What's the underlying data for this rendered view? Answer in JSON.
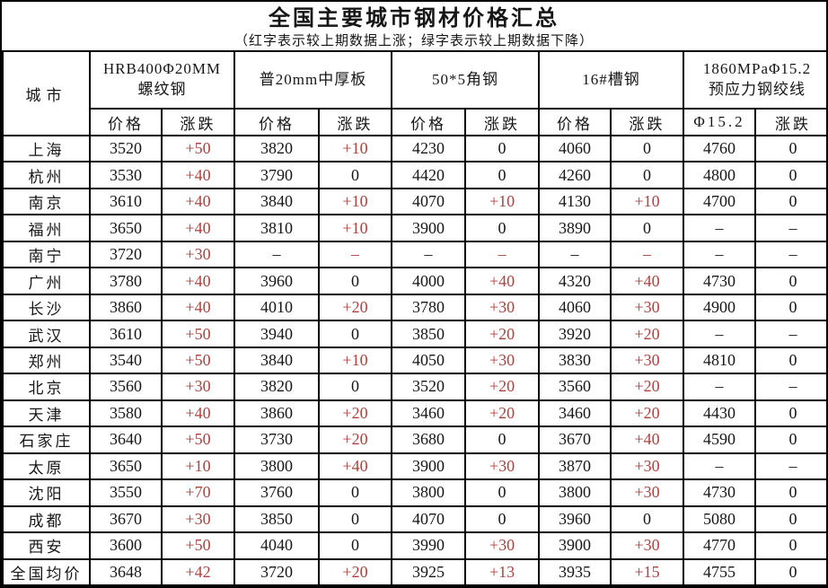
{
  "title": "全国主要城市钢材价格汇总",
  "subtitle": "（红字表示较上期数据上涨；绿字表示较上期数据下降）",
  "colors": {
    "up_red": "#b0413c",
    "text": "#161616",
    "grid_line": "#000000",
    "background": "#ffffff"
  },
  "table": {
    "city_header": "城市",
    "groups": [
      {
        "line1": "HRB400Φ20MM",
        "line2": "螺纹钢",
        "sub": [
          "价格",
          "涨跌"
        ]
      },
      {
        "line1": "普20mm中厚板",
        "line2": "",
        "sub": [
          "价格",
          "涨跌"
        ]
      },
      {
        "line1": "50*5角钢",
        "line2": "",
        "sub": [
          "价格",
          "涨跌"
        ]
      },
      {
        "line1": "16#槽钢",
        "line2": "",
        "sub": [
          "价格",
          "涨跌"
        ]
      },
      {
        "line1": "1860MPaΦ15.2",
        "line2": "预应力钢绞线",
        "sub": [
          "Φ15.2",
          "涨跌"
        ]
      }
    ],
    "rows": [
      {
        "city": "上海",
        "cells": [
          {
            "v": "3520"
          },
          {
            "v": "+50",
            "up": true
          },
          {
            "v": "3820"
          },
          {
            "v": "+10",
            "up": true
          },
          {
            "v": "4230"
          },
          {
            "v": "0"
          },
          {
            "v": "4060"
          },
          {
            "v": "0"
          },
          {
            "v": "4760"
          },
          {
            "v": "0"
          }
        ]
      },
      {
        "city": "杭州",
        "cells": [
          {
            "v": "3530"
          },
          {
            "v": "+40",
            "up": true
          },
          {
            "v": "3790"
          },
          {
            "v": "0"
          },
          {
            "v": "4420"
          },
          {
            "v": "0"
          },
          {
            "v": "4260"
          },
          {
            "v": "0"
          },
          {
            "v": "4800"
          },
          {
            "v": "0"
          }
        ]
      },
      {
        "city": "南京",
        "cells": [
          {
            "v": "3610"
          },
          {
            "v": "+40",
            "up": true
          },
          {
            "v": "3840"
          },
          {
            "v": "+10",
            "up": true
          },
          {
            "v": "4070"
          },
          {
            "v": "+10",
            "up": true
          },
          {
            "v": "4130"
          },
          {
            "v": "+10",
            "up": true
          },
          {
            "v": "4700"
          },
          {
            "v": "0"
          }
        ]
      },
      {
        "city": "福州",
        "cells": [
          {
            "v": "3650"
          },
          {
            "v": "+40",
            "up": true
          },
          {
            "v": "3810"
          },
          {
            "v": "+10",
            "up": true
          },
          {
            "v": "3900"
          },
          {
            "v": "0"
          },
          {
            "v": "3890"
          },
          {
            "v": "0"
          },
          {
            "v": "–"
          },
          {
            "v": "–"
          }
        ]
      },
      {
        "city": "南宁",
        "cells": [
          {
            "v": "3720"
          },
          {
            "v": "+30",
            "up": true
          },
          {
            "v": "–"
          },
          {
            "v": "–",
            "up": true
          },
          {
            "v": "–"
          },
          {
            "v": "–",
            "up": true
          },
          {
            "v": "–"
          },
          {
            "v": "–",
            "up": true
          },
          {
            "v": "–"
          },
          {
            "v": "–"
          }
        ]
      },
      {
        "city": "广州",
        "cells": [
          {
            "v": "3780"
          },
          {
            "v": "+40",
            "up": true
          },
          {
            "v": "3960"
          },
          {
            "v": "0"
          },
          {
            "v": "4000"
          },
          {
            "v": "+40",
            "up": true
          },
          {
            "v": "4320"
          },
          {
            "v": "+40",
            "up": true
          },
          {
            "v": "4730"
          },
          {
            "v": "0"
          }
        ]
      },
      {
        "city": "长沙",
        "cells": [
          {
            "v": "3860"
          },
          {
            "v": "+40",
            "up": true
          },
          {
            "v": "4010"
          },
          {
            "v": "+20",
            "up": true
          },
          {
            "v": "3780"
          },
          {
            "v": "+30",
            "up": true
          },
          {
            "v": "4060"
          },
          {
            "v": "+30",
            "up": true
          },
          {
            "v": "4900"
          },
          {
            "v": "0"
          }
        ]
      },
      {
        "city": "武汉",
        "cells": [
          {
            "v": "3610"
          },
          {
            "v": "+50",
            "up": true
          },
          {
            "v": "3940"
          },
          {
            "v": "0"
          },
          {
            "v": "3850"
          },
          {
            "v": "+20",
            "up": true
          },
          {
            "v": "3920"
          },
          {
            "v": "+20",
            "up": true
          },
          {
            "v": "–"
          },
          {
            "v": "–"
          }
        ]
      },
      {
        "city": "郑州",
        "cells": [
          {
            "v": "3540"
          },
          {
            "v": "+50",
            "up": true
          },
          {
            "v": "3840"
          },
          {
            "v": "+10",
            "up": true
          },
          {
            "v": "4050"
          },
          {
            "v": "+30",
            "up": true
          },
          {
            "v": "3830"
          },
          {
            "v": "+30",
            "up": true
          },
          {
            "v": "4810"
          },
          {
            "v": "0"
          }
        ]
      },
      {
        "city": "北京",
        "cells": [
          {
            "v": "3560"
          },
          {
            "v": "+30",
            "up": true
          },
          {
            "v": "3820"
          },
          {
            "v": "0"
          },
          {
            "v": "3520"
          },
          {
            "v": "+20",
            "up": true
          },
          {
            "v": "3560"
          },
          {
            "v": "+20",
            "up": true
          },
          {
            "v": "–"
          },
          {
            "v": "–"
          }
        ]
      },
      {
        "city": "天津",
        "cells": [
          {
            "v": "3580"
          },
          {
            "v": "+40",
            "up": true
          },
          {
            "v": "3860"
          },
          {
            "v": "+20",
            "up": true
          },
          {
            "v": "3460"
          },
          {
            "v": "+20",
            "up": true
          },
          {
            "v": "3460"
          },
          {
            "v": "+20",
            "up": true
          },
          {
            "v": "4430"
          },
          {
            "v": "0"
          }
        ]
      },
      {
        "city": "石家庄",
        "cells": [
          {
            "v": "3640"
          },
          {
            "v": "+50",
            "up": true
          },
          {
            "v": "3730"
          },
          {
            "v": "+20",
            "up": true
          },
          {
            "v": "3680"
          },
          {
            "v": "0"
          },
          {
            "v": "3670"
          },
          {
            "v": "+40",
            "up": true
          },
          {
            "v": "4590"
          },
          {
            "v": "0"
          }
        ]
      },
      {
        "city": "太原",
        "cells": [
          {
            "v": "3650"
          },
          {
            "v": "+10",
            "up": true
          },
          {
            "v": "3800"
          },
          {
            "v": "+40",
            "up": true
          },
          {
            "v": "3900"
          },
          {
            "v": "+30",
            "up": true
          },
          {
            "v": "3870"
          },
          {
            "v": "+30",
            "up": true
          },
          {
            "v": "–"
          },
          {
            "v": "–"
          }
        ]
      },
      {
        "city": "沈阳",
        "cells": [
          {
            "v": "3550"
          },
          {
            "v": "+70",
            "up": true
          },
          {
            "v": "3760"
          },
          {
            "v": "0"
          },
          {
            "v": "3800"
          },
          {
            "v": "0"
          },
          {
            "v": "3800"
          },
          {
            "v": "+30",
            "up": true
          },
          {
            "v": "4730"
          },
          {
            "v": "0"
          }
        ]
      },
      {
        "city": "成都",
        "cells": [
          {
            "v": "3670"
          },
          {
            "v": "+30",
            "up": true
          },
          {
            "v": "3850"
          },
          {
            "v": "0"
          },
          {
            "v": "4070"
          },
          {
            "v": "0"
          },
          {
            "v": "3960"
          },
          {
            "v": "0"
          },
          {
            "v": "5080"
          },
          {
            "v": "0"
          }
        ]
      },
      {
        "city": "西安",
        "cells": [
          {
            "v": "3600"
          },
          {
            "v": "+50",
            "up": true
          },
          {
            "v": "4040"
          },
          {
            "v": "0"
          },
          {
            "v": "3990"
          },
          {
            "v": "+30",
            "up": true
          },
          {
            "v": "3900"
          },
          {
            "v": "+30",
            "up": true
          },
          {
            "v": "4770"
          },
          {
            "v": "0"
          }
        ]
      },
      {
        "city": "全国均价",
        "cells": [
          {
            "v": "3648"
          },
          {
            "v": "+42",
            "up": true
          },
          {
            "v": "3720"
          },
          {
            "v": "+20",
            "up": true
          },
          {
            "v": "3925"
          },
          {
            "v": "+13",
            "up": true
          },
          {
            "v": "3935"
          },
          {
            "v": "+15",
            "up": true
          },
          {
            "v": "4755"
          },
          {
            "v": "0"
          }
        ]
      }
    ]
  }
}
